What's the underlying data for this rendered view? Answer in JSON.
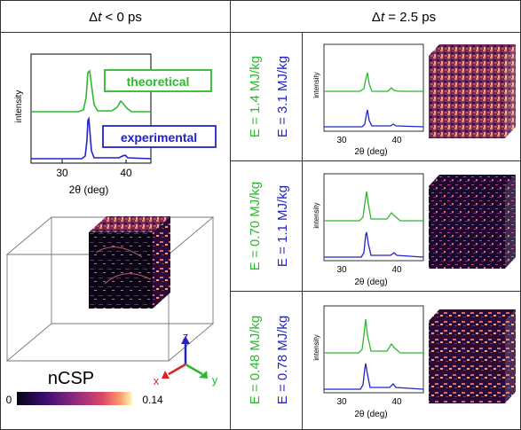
{
  "header": {
    "left_delta": "Δ",
    "left_t": "t",
    "left_rest": " < 0 ps",
    "right_delta": "Δ",
    "right_t": "t",
    "right_rest": " = 2.5 ps"
  },
  "left_panel": {
    "ylabel": "intensity",
    "xlabel": "2θ (deg)",
    "ticks": [
      "30",
      "40"
    ],
    "legend_theoretical": "theoretical",
    "legend_experimental": "experimental",
    "colorbar_title": "nCSP",
    "colorbar_min": "0",
    "colorbar_max": "0.14",
    "axes": {
      "z": "z",
      "x": "x",
      "y": "y"
    }
  },
  "rows": [
    {
      "e_green": "E = 1.4 MJ/kg",
      "e_blue": "E = 3.1 MJ/kg"
    },
    {
      "e_green": "E = 0.70 MJ/kg",
      "e_blue": "E = 1.1 MJ/kg"
    },
    {
      "e_green": "E = 0.48 MJ/kg",
      "e_blue": "E = 0.78 MJ/kg"
    }
  ],
  "small_plot": {
    "ylabel": "intensity",
    "xlabel": "2θ (deg)",
    "ticks": [
      "30",
      "40"
    ]
  },
  "colors": {
    "green": "#2eb82e",
    "blue": "#2222cc",
    "grid": "#333333"
  }
}
